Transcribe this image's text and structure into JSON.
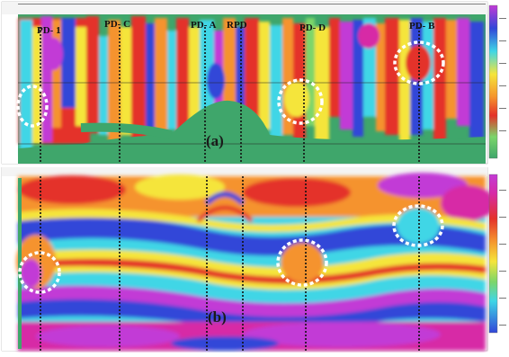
{
  "figure": {
    "panels": [
      {
        "id": "a",
        "label": "(a)",
        "wells": [
          "PD- 1",
          "PD- C",
          "PD- A",
          "RPD",
          "PD- D",
          "PD- B"
        ]
      },
      {
        "id": "b",
        "label": "(b)"
      }
    ]
  },
  "colors": {
    "green_background": "#3fa66b",
    "purple": "#c23bd6",
    "magenta": "#d72aa6",
    "blue": "#3146d8",
    "cyan": "#3fd6e6",
    "yellow": "#f5e53a",
    "orange": "#f5932d",
    "red": "#e4322a",
    "highlight_circle": "#ffffff",
    "well_line": "#111111"
  }
}
